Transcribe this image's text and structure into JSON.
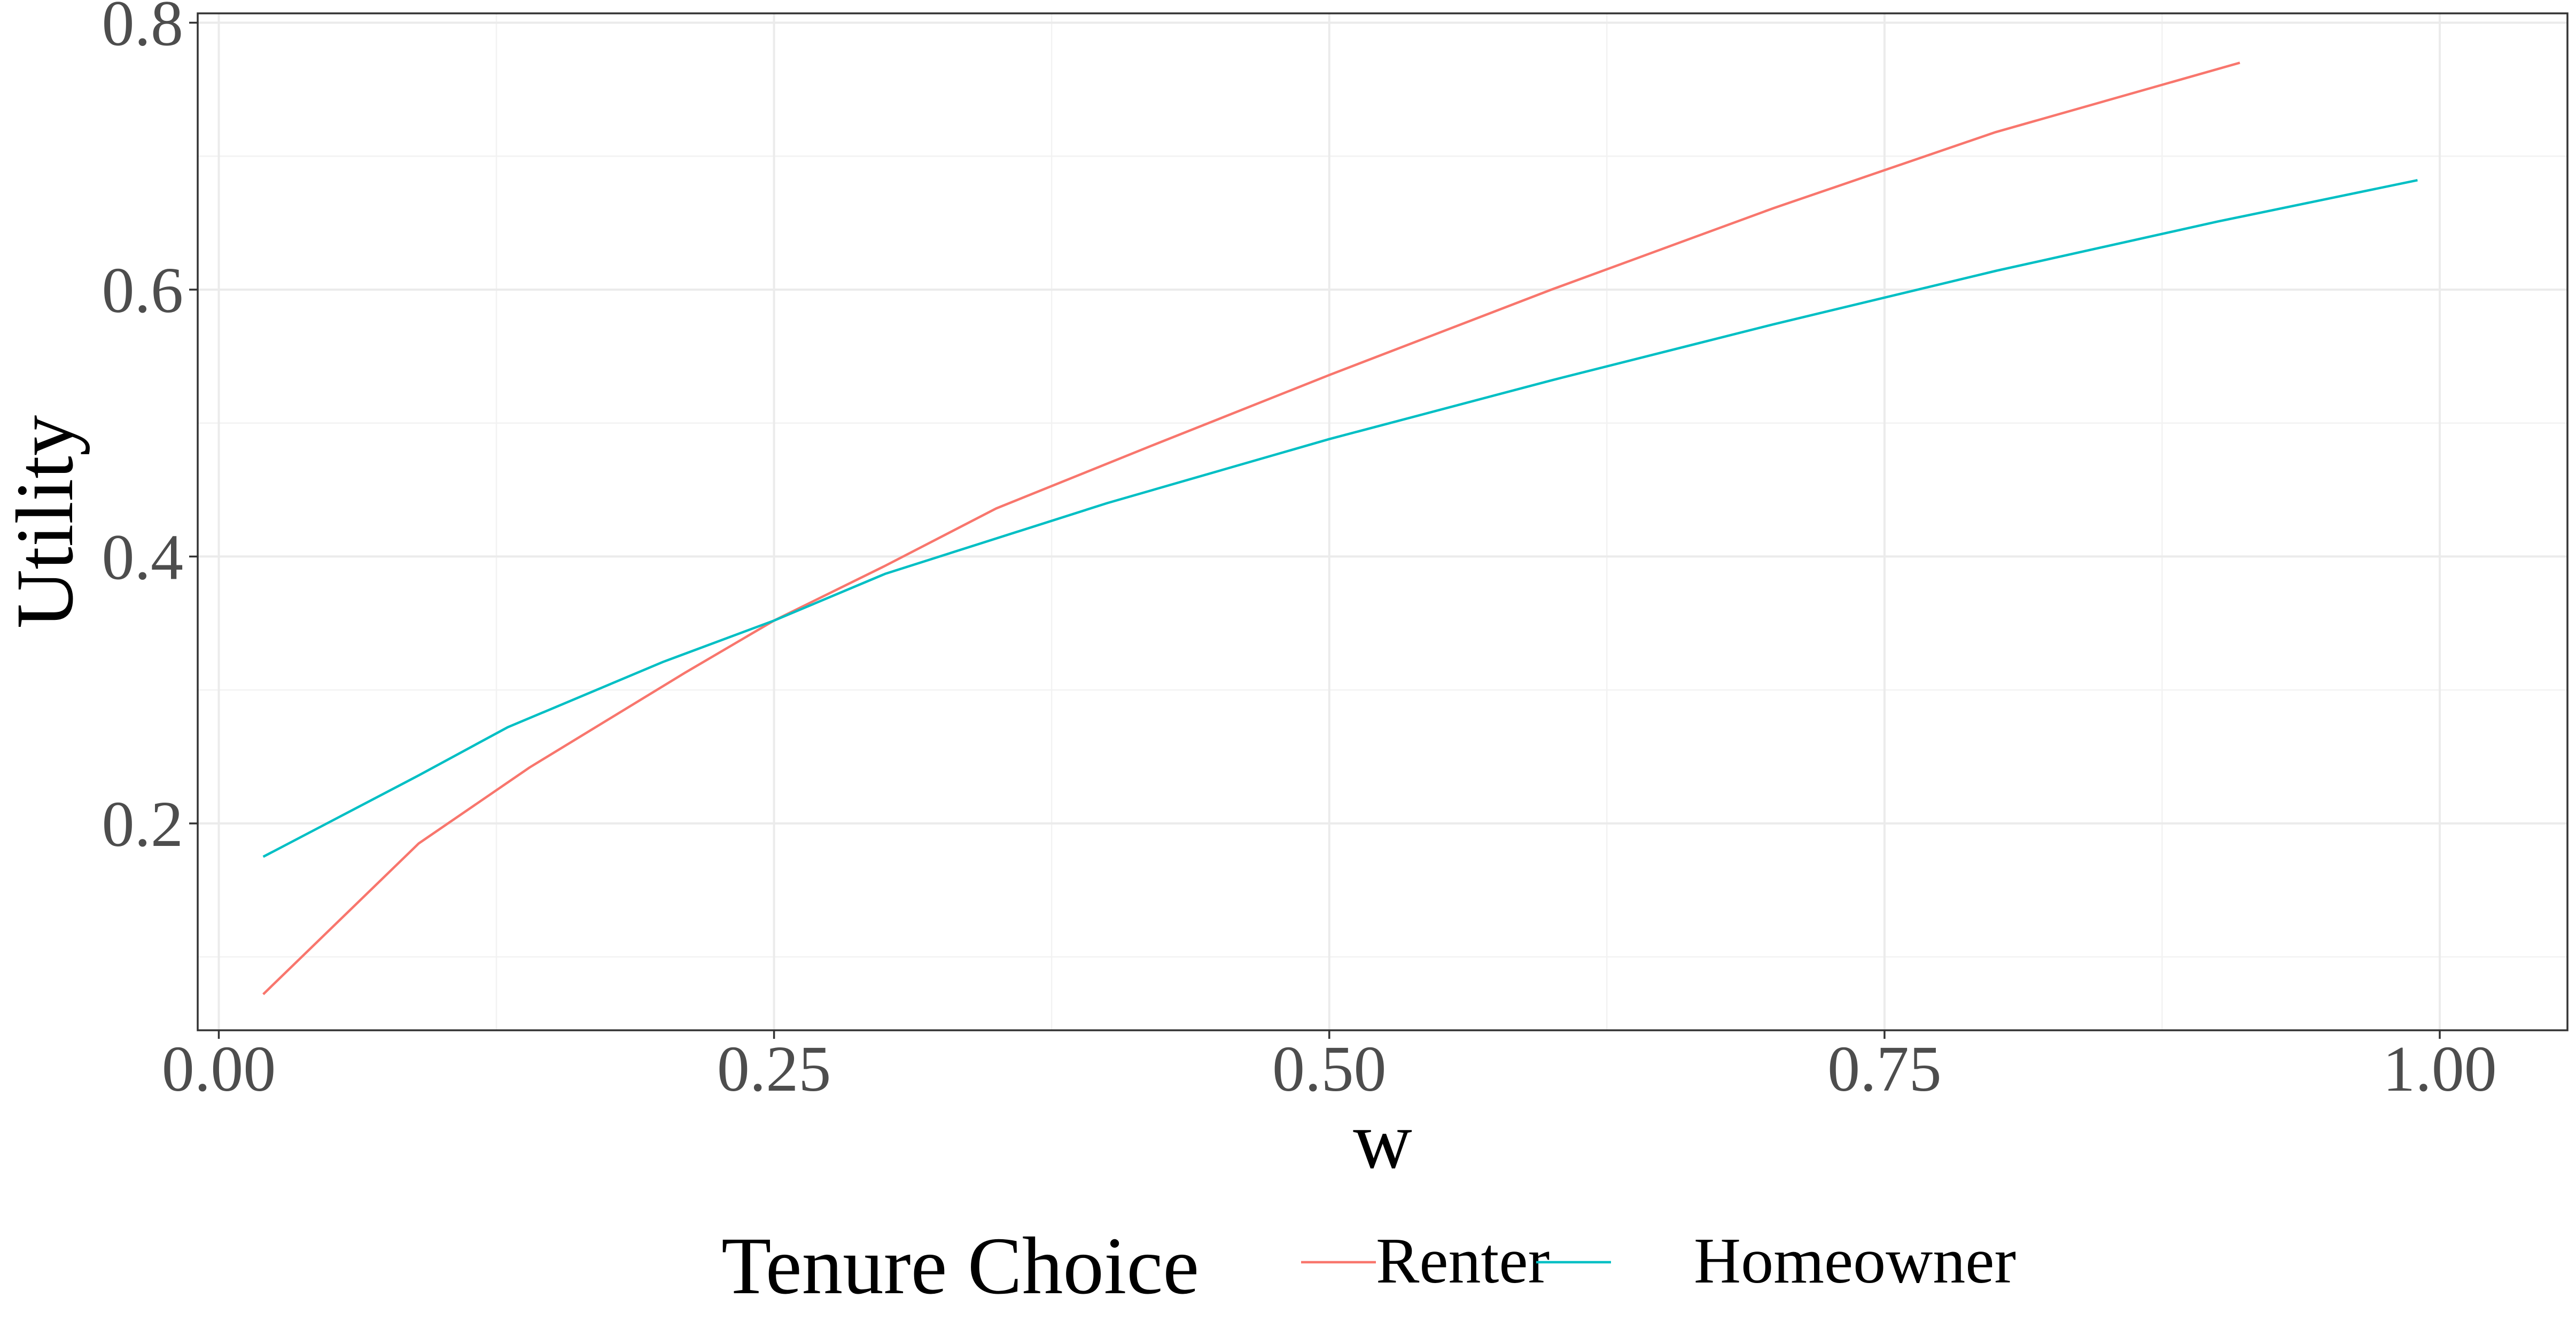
{
  "chart_data": {
    "type": "line",
    "xlabel": "w",
    "ylabel": "Utility",
    "xlim": [
      -0.0095,
      1.0575
    ],
    "ylim": [
      0.045,
      0.807
    ],
    "x_ticks": [
      0.0,
      0.25,
      0.5,
      0.75,
      1.0
    ],
    "x_tick_labels": [
      "0.00",
      "0.25",
      "0.50",
      "0.75",
      "1.00"
    ],
    "y_ticks": [
      0.2,
      0.4,
      0.6,
      0.8
    ],
    "y_tick_labels": [
      "0.2",
      "0.4",
      "0.6",
      "0.8"
    ],
    "grid": true,
    "legend": {
      "title": "Tenure Choice",
      "position": "bottom"
    },
    "series": [
      {
        "name": "Renter",
        "color": "#F8766D",
        "x": [
          0.02,
          0.09,
          0.14,
          0.21,
          0.25,
          0.3,
          0.35,
          0.42,
          0.5,
          0.6,
          0.7,
          0.8,
          0.91
        ],
        "y": [
          0.072,
          0.185,
          0.242,
          0.313,
          0.352,
          0.393,
          0.436,
          0.483,
          0.536,
          0.6,
          0.661,
          0.718,
          0.77
        ]
      },
      {
        "name": "Homeowner",
        "color": "#00BFC4",
        "x": [
          0.02,
          0.09,
          0.13,
          0.2,
          0.25,
          0.3,
          0.4,
          0.5,
          0.6,
          0.7,
          0.8,
          0.9,
          0.99
        ],
        "y": [
          0.175,
          0.236,
          0.272,
          0.321,
          0.352,
          0.387,
          0.44,
          0.488,
          0.532,
          0.574,
          0.614,
          0.651,
          0.682
        ]
      }
    ]
  }
}
